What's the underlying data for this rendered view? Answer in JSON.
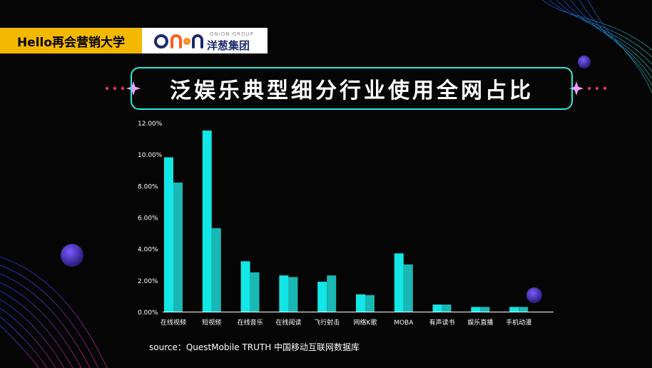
{
  "header": {
    "badge_text": "Hello再会营销大学",
    "logo_en": "ONION GROUP",
    "logo_cn": "洋葱集团",
    "logo_mark": "onion"
  },
  "colors": {
    "background": "#050505",
    "badge": "#f5b800",
    "accent": "#2ee8e0",
    "series1": "#12e6e6",
    "series2": "#19b8b4",
    "dots": "#e8306e"
  },
  "chart_data": {
    "type": "bar",
    "title": "泛娱乐典型细分行业使用全网占比",
    "categories": [
      "在线视频",
      "短视频",
      "在线音乐",
      "在线阅读",
      "飞行射击",
      "网络K歌",
      "MOBA",
      "有声读书",
      "娱乐直播",
      "手机动漫"
    ],
    "series": [
      {
        "values": [
          9.8,
          11.5,
          3.2,
          2.3,
          1.9,
          1.1,
          3.7,
          0.45,
          0.3,
          0.3
        ]
      },
      {
        "values": [
          8.2,
          5.3,
          2.5,
          2.2,
          2.3,
          1.05,
          3.0,
          0.45,
          0.3,
          0.3
        ]
      }
    ],
    "y_ticks": [
      "0.00%",
      "2.00%",
      "4.00%",
      "6.00%",
      "8.00%",
      "10.00%",
      "12.00%"
    ],
    "ylim": [
      0,
      12
    ],
    "grid": false,
    "legend": "none"
  },
  "source": "source：QuestMobile TRUTH 中国移动互联网数据库"
}
